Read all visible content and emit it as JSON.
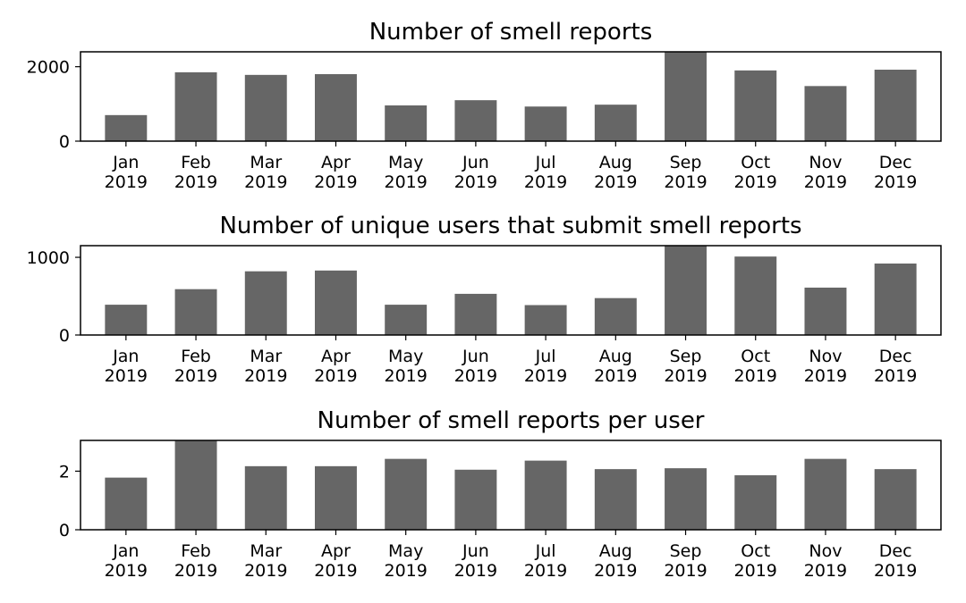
{
  "chart_data": [
    {
      "type": "bar",
      "title": "Number of smell reports",
      "categories": [
        "Jan\n2019",
        "Feb\n2019",
        "Mar\n2019",
        "Apr\n2019",
        "May\n2019",
        "Jun\n2019",
        "Jul\n2019",
        "Aug\n2019",
        "Sep\n2019",
        "Oct\n2019",
        "Nov\n2019",
        "Dec\n2019"
      ],
      "values": [
        700,
        1850,
        1780,
        1800,
        960,
        1100,
        930,
        980,
        2500,
        1900,
        1480,
        1920
      ],
      "ylim": [
        0,
        2400
      ],
      "yticks": [
        0,
        2000
      ],
      "xlabel": "",
      "ylabel": "",
      "bar_color": "#666666",
      "grid": false,
      "legend": "none"
    },
    {
      "type": "bar",
      "title": "Number of unique users that submit smell reports",
      "categories": [
        "Jan\n2019",
        "Feb\n2019",
        "Mar\n2019",
        "Apr\n2019",
        "May\n2019",
        "Jun\n2019",
        "Jul\n2019",
        "Aug\n2019",
        "Sep\n2019",
        "Oct\n2019",
        "Nov\n2019",
        "Dec\n2019"
      ],
      "values": [
        390,
        590,
        820,
        830,
        390,
        530,
        385,
        475,
        1200,
        1010,
        610,
        920
      ],
      "ylim": [
        0,
        1150
      ],
      "yticks": [
        0,
        1000
      ],
      "xlabel": "",
      "ylabel": "",
      "bar_color": "#666666",
      "grid": false,
      "legend": "none"
    },
    {
      "type": "bar",
      "title": "Number of smell reports per user",
      "categories": [
        "Jan\n2019",
        "Feb\n2019",
        "Mar\n2019",
        "Apr\n2019",
        "May\n2019",
        "Jun\n2019",
        "Jul\n2019",
        "Aug\n2019",
        "Sep\n2019",
        "Oct\n2019",
        "Nov\n2019",
        "Dec\n2019"
      ],
      "values": [
        1.78,
        3.14,
        2.17,
        2.17,
        2.42,
        2.05,
        2.36,
        2.07,
        2.1,
        1.86,
        2.42,
        2.07
      ],
      "ylim": [
        0,
        3.05
      ],
      "yticks": [
        0,
        2
      ],
      "xlabel": "",
      "ylabel": "",
      "bar_color": "#666666",
      "grid": false,
      "legend": "none"
    }
  ]
}
